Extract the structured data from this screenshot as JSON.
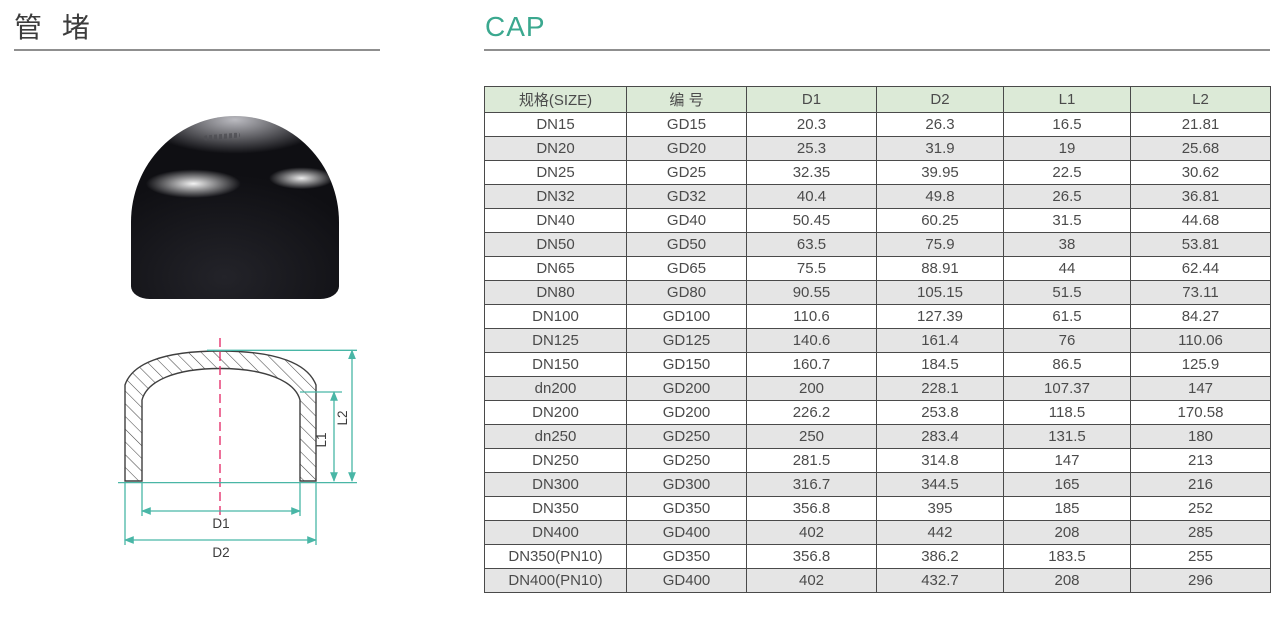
{
  "page": {
    "title_cn": "管 堵",
    "title_en": "CAP"
  },
  "colors": {
    "accent": "#3BA88F",
    "title_text": "#3C3C3C",
    "rule_gray": "#8F8F8F",
    "table_header_bg": "#DCEAD7",
    "table_alt_row": "#E5E5E5",
    "table_border": "#4A4A4A",
    "table_text": "#4B4B4B",
    "dim_line": "#49B6A6",
    "centerline": "#E5336E",
    "drawing_line": "#3F3F3F"
  },
  "diagram": {
    "labels": {
      "d1": "D1",
      "d2": "D2",
      "l1": "L1",
      "l2": "L2"
    }
  },
  "table": {
    "headers": [
      "规格(SIZE)",
      "编 号",
      "D1",
      "D2",
      "L1",
      "L2"
    ],
    "rows": [
      [
        "DN15",
        "GD15",
        "20.3",
        "26.3",
        "16.5",
        "21.81"
      ],
      [
        "DN20",
        "GD20",
        "25.3",
        "31.9",
        "19",
        "25.68"
      ],
      [
        "DN25",
        "GD25",
        "32.35",
        "39.95",
        "22.5",
        "30.62"
      ],
      [
        "DN32",
        "GD32",
        "40.4",
        "49.8",
        "26.5",
        "36.81"
      ],
      [
        "DN40",
        "GD40",
        "50.45",
        "60.25",
        "31.5",
        "44.68"
      ],
      [
        "DN50",
        "GD50",
        "63.5",
        "75.9",
        "38",
        "53.81"
      ],
      [
        "DN65",
        "GD65",
        "75.5",
        "88.91",
        "44",
        "62.44"
      ],
      [
        "DN80",
        "GD80",
        "90.55",
        "105.15",
        "51.5",
        "73.11"
      ],
      [
        "DN100",
        "GD100",
        "110.6",
        "127.39",
        "61.5",
        "84.27"
      ],
      [
        "DN125",
        "GD125",
        "140.6",
        "161.4",
        "76",
        "110.06"
      ],
      [
        "DN150",
        "GD150",
        "160.7",
        "184.5",
        "86.5",
        "125.9"
      ],
      [
        "dn200",
        "GD200",
        "200",
        "228.1",
        "107.37",
        "147"
      ],
      [
        "DN200",
        "GD200",
        "226.2",
        "253.8",
        "118.5",
        "170.58"
      ],
      [
        "dn250",
        "GD250",
        "250",
        "283.4",
        "131.5",
        "180"
      ],
      [
        "DN250",
        "GD250",
        "281.5",
        "314.8",
        "147",
        "213"
      ],
      [
        "DN300",
        "GD300",
        "316.7",
        "344.5",
        "165",
        "216"
      ],
      [
        "DN350",
        "GD350",
        "356.8",
        "395",
        "185",
        "252"
      ],
      [
        "DN400",
        "GD400",
        "402",
        "442",
        "208",
        "285"
      ],
      [
        "DN350(PN10)",
        "GD350",
        "356.8",
        "386.2",
        "183.5",
        "255"
      ],
      [
        "DN400(PN10)",
        "GD400",
        "402",
        "432.7",
        "208",
        "296"
      ]
    ]
  }
}
